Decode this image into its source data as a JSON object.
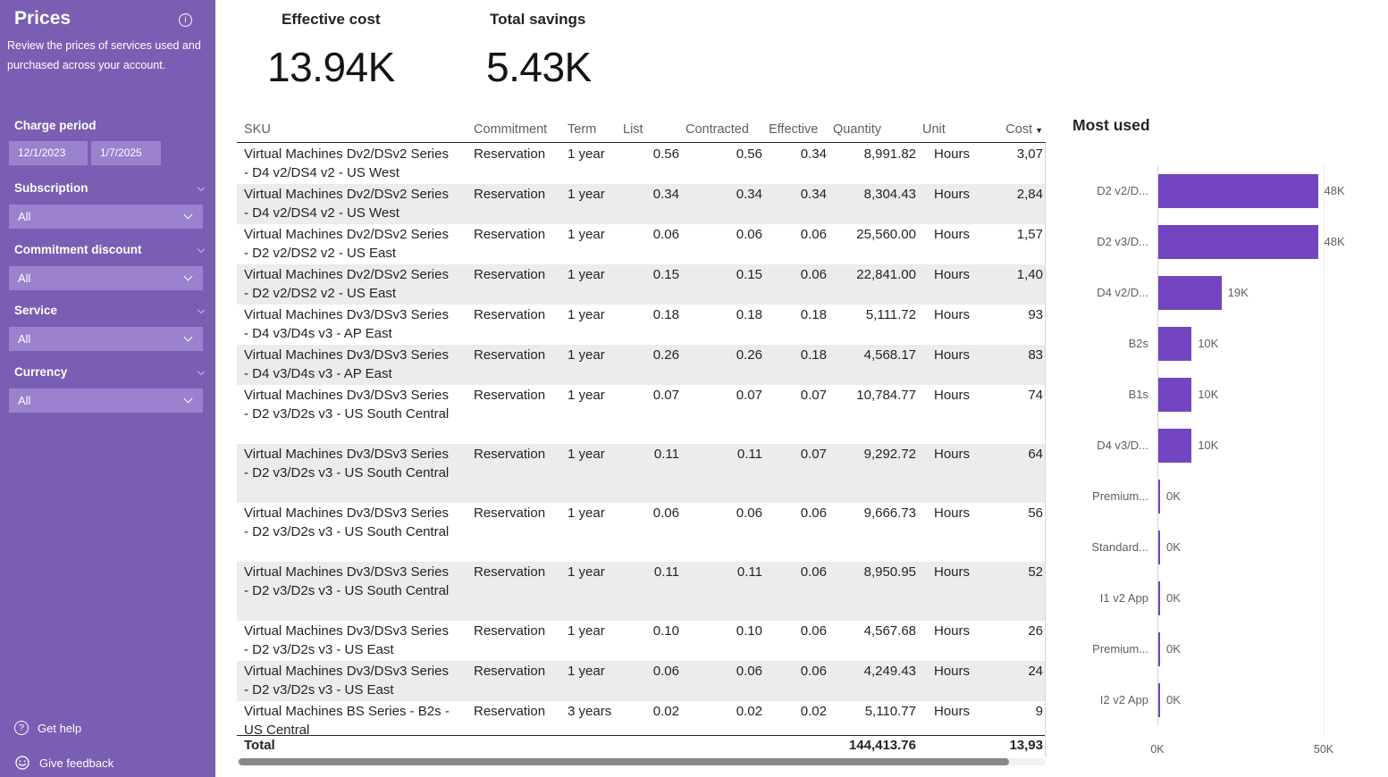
{
  "sidebar": {
    "title": "Prices",
    "subtitle": "Review the prices of services used and purchased across your account.",
    "filters": {
      "charge_period": {
        "label": "Charge period",
        "start": "12/1/2023",
        "end": "1/7/2025"
      },
      "subscription": {
        "label": "Subscription",
        "value": "All"
      },
      "commitment_discount": {
        "label": "Commitment discount",
        "value": "All"
      },
      "service": {
        "label": "Service",
        "value": "All"
      },
      "currency": {
        "label": "Currency",
        "value": "All"
      }
    },
    "footer": {
      "get_help": "Get help",
      "give_feedback": "Give feedback"
    }
  },
  "kpis": [
    {
      "label": "Effective cost",
      "value": "13.94K"
    },
    {
      "label": "Total savings",
      "value": "5.43K"
    }
  ],
  "table": {
    "columns": [
      "SKU",
      "Commitment",
      "Term",
      "List",
      "Contracted",
      "Effective",
      "Quantity",
      "Unit",
      "Cost"
    ],
    "sorted_column": "Cost",
    "sort_indicator": "▼",
    "rows": [
      {
        "sku": "Virtual Machines Dv2/DSv2 Series - D4 v2/DS4 v2 - US West",
        "commitment": "Reservation",
        "term": "1 year",
        "list": "0.56",
        "contracted": "0.56",
        "effective": "0.34",
        "quantity": "8,991.82",
        "unit": "Hours",
        "cost": "3,07"
      },
      {
        "sku": "Virtual Machines Dv2/DSv2 Series - D4 v2/DS4 v2 - US West",
        "commitment": "Reservation",
        "term": "1 year",
        "list": "0.34",
        "contracted": "0.34",
        "effective": "0.34",
        "quantity": "8,304.43",
        "unit": "Hours",
        "cost": "2,84"
      },
      {
        "sku": "Virtual Machines Dv2/DSv2 Series - D2 v2/DS2 v2 - US East",
        "commitment": "Reservation",
        "term": "1 year",
        "list": "0.06",
        "contracted": "0.06",
        "effective": "0.06",
        "quantity": "25,560.00",
        "unit": "Hours",
        "cost": "1,57"
      },
      {
        "sku": "Virtual Machines Dv2/DSv2 Series - D2 v2/DS2 v2 - US East",
        "commitment": "Reservation",
        "term": "1 year",
        "list": "0.15",
        "contracted": "0.15",
        "effective": "0.06",
        "quantity": "22,841.00",
        "unit": "Hours",
        "cost": "1,40"
      },
      {
        "sku": "Virtual Machines Dv3/DSv3 Series - D4 v3/D4s v3 - AP East",
        "commitment": "Reservation",
        "term": "1 year",
        "list": "0.18",
        "contracted": "0.18",
        "effective": "0.18",
        "quantity": "5,111.72",
        "unit": "Hours",
        "cost": "93"
      },
      {
        "sku": "Virtual Machines Dv3/DSv3 Series - D4 v3/D4s v3 - AP East",
        "commitment": "Reservation",
        "term": "1 year",
        "list": "0.26",
        "contracted": "0.26",
        "effective": "0.18",
        "quantity": "4,568.17",
        "unit": "Hours",
        "cost": "83"
      },
      {
        "sku": "Virtual Machines Dv3/DSv3 Series - D2 v3/D2s v3 - US South Central",
        "commitment": "Reservation",
        "term": "1 year",
        "list": "0.07",
        "contracted": "0.07",
        "effective": "0.07",
        "quantity": "10,784.77",
        "unit": "Hours",
        "cost": "74"
      },
      {
        "sku": "Virtual Machines Dv3/DSv3 Series - D2 v3/D2s v3 - US South Central",
        "commitment": "Reservation",
        "term": "1 year",
        "list": "0.11",
        "contracted": "0.11",
        "effective": "0.07",
        "quantity": "9,292.72",
        "unit": "Hours",
        "cost": "64"
      },
      {
        "sku": "Virtual Machines Dv3/DSv3 Series - D2 v3/D2s v3 - US South Central",
        "commitment": "Reservation",
        "term": "1 year",
        "list": "0.06",
        "contracted": "0.06",
        "effective": "0.06",
        "quantity": "9,666.73",
        "unit": "Hours",
        "cost": "56"
      },
      {
        "sku": "Virtual Machines Dv3/DSv3 Series - D2 v3/D2s v3 - US South Central",
        "commitment": "Reservation",
        "term": "1 year",
        "list": "0.11",
        "contracted": "0.11",
        "effective": "0.06",
        "quantity": "8,950.95",
        "unit": "Hours",
        "cost": "52"
      },
      {
        "sku": "Virtual Machines Dv3/DSv3 Series - D2 v3/D2s v3 - US East",
        "commitment": "Reservation",
        "term": "1 year",
        "list": "0.10",
        "contracted": "0.10",
        "effective": "0.06",
        "quantity": "4,567.68",
        "unit": "Hours",
        "cost": "26"
      },
      {
        "sku": "Virtual Machines Dv3/DSv3 Series - D2 v3/D2s v3 - US East",
        "commitment": "Reservation",
        "term": "1 year",
        "list": "0.06",
        "contracted": "0.06",
        "effective": "0.06",
        "quantity": "4,249.43",
        "unit": "Hours",
        "cost": "24"
      },
      {
        "sku": "Virtual Machines BS Series - B2s - US Central",
        "commitment": "Reservation",
        "term": "3 years",
        "list": "0.02",
        "contracted": "0.02",
        "effective": "0.02",
        "quantity": "5,110.77",
        "unit": "Hours",
        "cost": "9"
      }
    ],
    "total": {
      "label": "Total",
      "quantity": "144,413.76",
      "cost": "13,93"
    }
  },
  "chart_data": {
    "type": "bar",
    "orientation": "horizontal",
    "title": "Most used",
    "categories": [
      "D2 v2/D...",
      "D2 v3/D...",
      "D4 v2/D...",
      "B2s",
      "B1s",
      "D4 v3/D...",
      "Premium...",
      "Standard...",
      "I1 v2 App",
      "Premium...",
      "I2 v2 App"
    ],
    "values": [
      48,
      48,
      19,
      10,
      10,
      10,
      0,
      0,
      0,
      0,
      0
    ],
    "value_labels": [
      "48K",
      "48K",
      "19K",
      "10K",
      "10K",
      "10K",
      "0K",
      "0K",
      "0K",
      "0K",
      "0K"
    ],
    "unit": "K hours",
    "xlim": [
      0,
      50
    ],
    "x_ticks": [
      "0K",
      "50K"
    ],
    "grid": true,
    "legend": "none",
    "bar_color": "#7445c0"
  },
  "colors": {
    "sidebar_bg": "#7a5eb4",
    "sidebar_control_bg": "#9a82ce",
    "bar_accent": "#7445c0",
    "row_alt": "#ececec",
    "text_dark": "#252423",
    "text_gray": "#605e5c"
  }
}
